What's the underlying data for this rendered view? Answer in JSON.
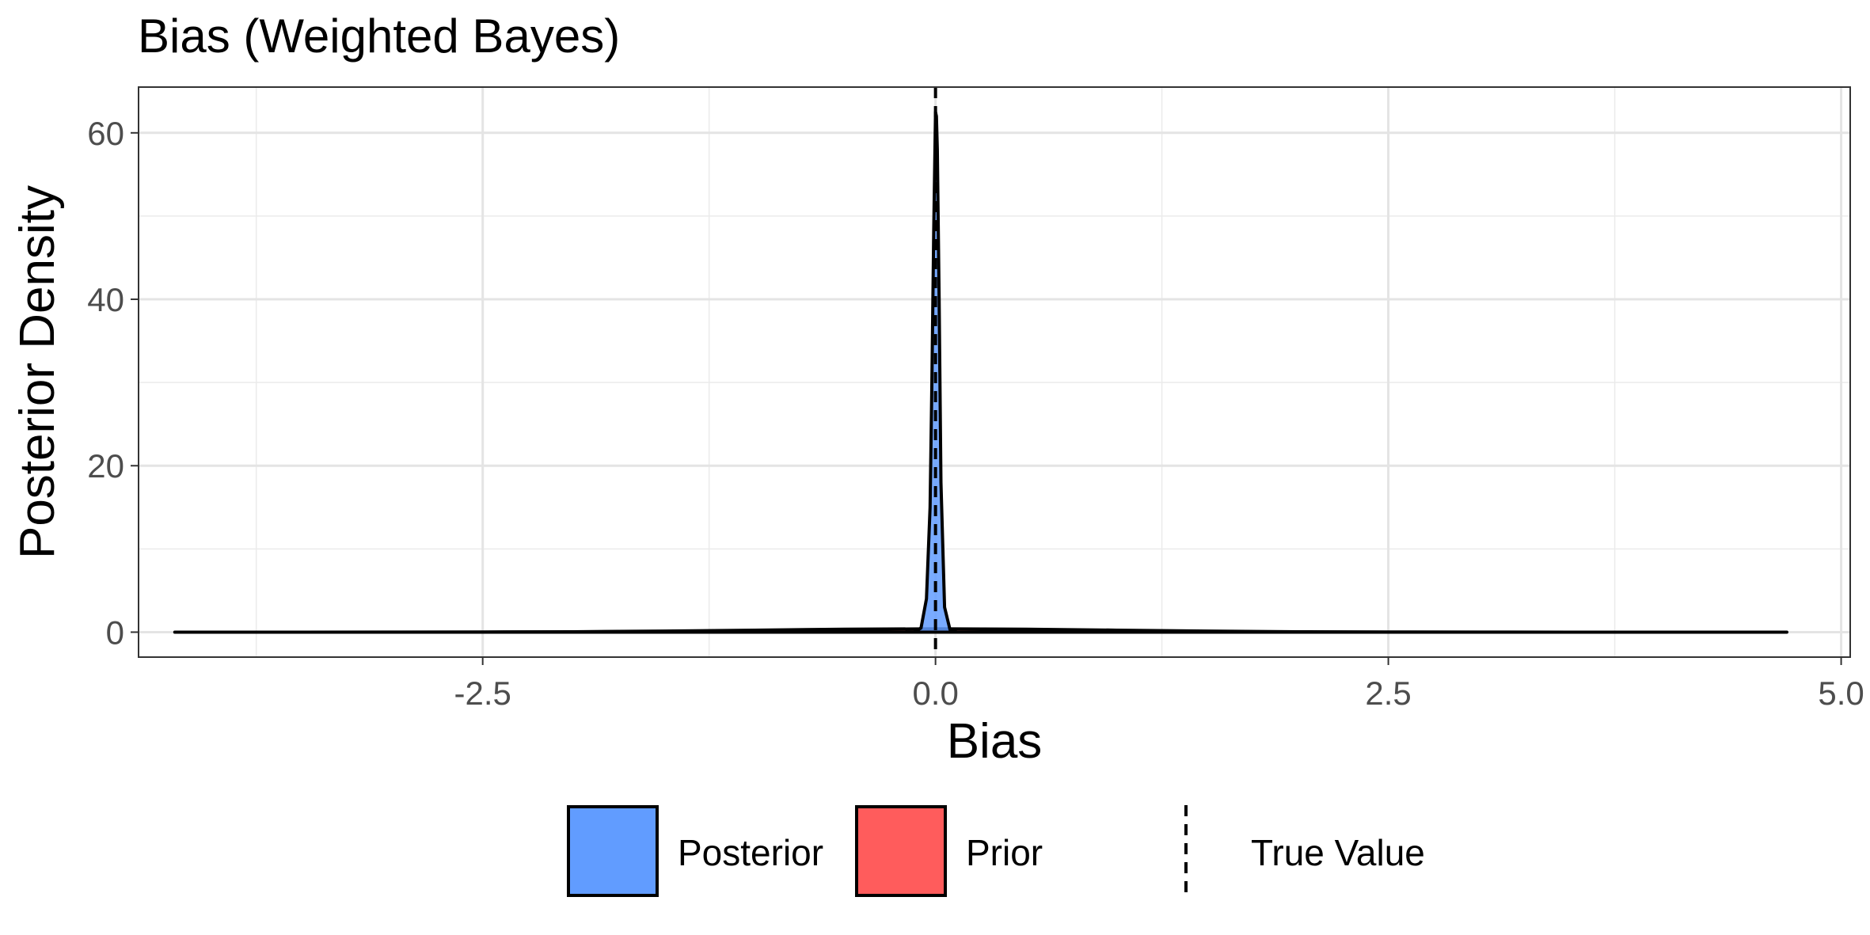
{
  "chart_data": {
    "type": "area",
    "title": "Bias (Weighted Bayes)",
    "xlabel": "Bias",
    "ylabel": "Posterior Density",
    "xlim": [
      -4.4,
      5.05
    ],
    "ylim": [
      -3,
      65.5
    ],
    "x_ticks": [
      -2.5,
      0.0,
      2.5,
      5.0
    ],
    "x_tick_labels": [
      "-2.5",
      "0.0",
      "2.5",
      "5.0"
    ],
    "y_ticks": [
      0,
      20,
      40,
      60
    ],
    "y_tick_labels": [
      "0",
      "20",
      "40",
      "60"
    ],
    "grid": true,
    "legend_position": "bottom",
    "true_value": 0.0,
    "series": [
      {
        "name": "Posterior",
        "color": "#619CFF",
        "x": [
          -0.12,
          -0.08,
          -0.05,
          -0.03,
          -0.02,
          -0.01,
          0.0,
          0.005,
          0.01,
          0.02,
          0.03,
          0.05,
          0.08,
          0.12
        ],
        "y": [
          0,
          0.5,
          4,
          15,
          30,
          48,
          62.5,
          62,
          58,
          40,
          18,
          3,
          0.3,
          0
        ]
      },
      {
        "name": "Prior",
        "color": "#FF5C5C",
        "x": [
          -4.2,
          -3.5,
          -3.0,
          -2.5,
          -2.0,
          -1.5,
          -1.0,
          -0.5,
          0.0,
          0.5,
          1.0,
          1.5,
          2.0,
          2.5,
          3.0,
          3.5,
          4.0,
          4.7
        ],
        "y": [
          0.0,
          0.0,
          0.01,
          0.02,
          0.05,
          0.13,
          0.24,
          0.35,
          0.4,
          0.35,
          0.24,
          0.13,
          0.05,
          0.02,
          0.01,
          0.0,
          0.0,
          0.0
        ]
      }
    ],
    "legend": {
      "posterior_label": "Posterior",
      "prior_label": "Prior",
      "true_value_label": "True Value"
    }
  }
}
